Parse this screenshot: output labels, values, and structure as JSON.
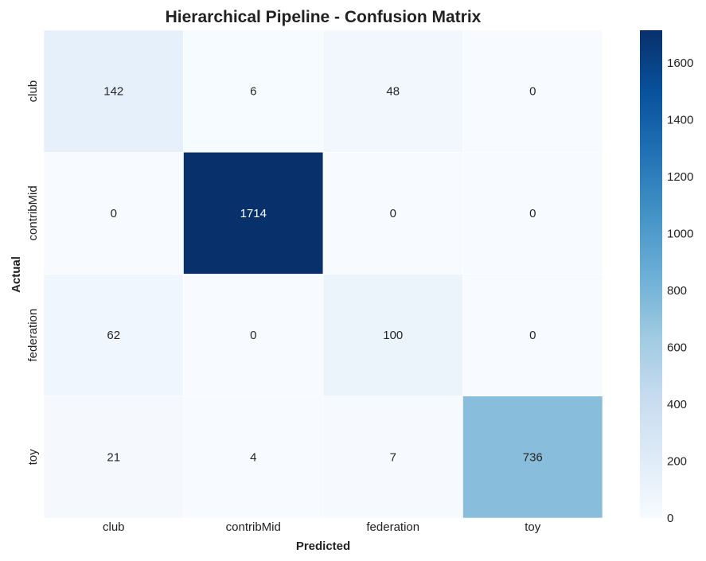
{
  "chart_data": {
    "type": "heatmap",
    "title": "Hierarchical Pipeline - Confusion Matrix",
    "xlabel": "Predicted",
    "ylabel": "Actual",
    "x_categories": [
      "club",
      "contribMid",
      "federation",
      "toy"
    ],
    "y_categories": [
      "club",
      "contribMid",
      "federation",
      "toy"
    ],
    "values": [
      [
        142,
        6,
        48,
        0
      ],
      [
        0,
        1714,
        0,
        0
      ],
      [
        62,
        0,
        100,
        0
      ],
      [
        21,
        4,
        7,
        736
      ]
    ],
    "colorscale": "Blues",
    "color_min": 0,
    "color_max": 1714,
    "colorbar_ticks": [
      0,
      200,
      400,
      600,
      800,
      1000,
      1200,
      1400,
      1600
    ],
    "colors": {
      "low": "#f7fbff",
      "high": "#08306b",
      "text_dark": "#262626",
      "text_light": "#ffffff"
    }
  }
}
